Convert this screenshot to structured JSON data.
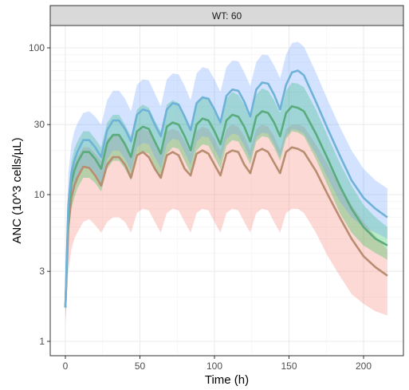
{
  "chart_data": {
    "type": "line",
    "facet_label": "WT: 60",
    "xlabel": "Time (h)",
    "ylabel": "ANC (10^3 cells/µL)",
    "y_scale": "log",
    "xlim": [
      0,
      216
    ],
    "ylim": [
      1,
      120
    ],
    "x_ticks": [
      0,
      50,
      100,
      150,
      200
    ],
    "x_tick_labels": [
      "0",
      "50",
      "100",
      "150",
      "200"
    ],
    "y_ticks": [
      1,
      3,
      10,
      30,
      100
    ],
    "y_tick_labels": [
      "1",
      "3",
      "10",
      "30",
      "100"
    ],
    "grid": true,
    "legend": "none",
    "x": [
      0,
      2,
      4,
      6,
      8,
      12,
      16,
      20,
      24,
      28,
      32,
      36,
      40,
      44,
      48,
      52,
      56,
      60,
      64,
      68,
      72,
      76,
      80,
      84,
      88,
      92,
      96,
      100,
      104,
      108,
      112,
      116,
      120,
      124,
      128,
      132,
      136,
      140,
      144,
      148,
      152,
      156,
      160,
      168,
      176,
      184,
      192,
      200,
      208,
      216
    ],
    "series": [
      {
        "name": "red",
        "color": "#f8766d",
        "line_color": "#b88d70",
        "median": [
          1.7,
          6.0,
          9.5,
          11.5,
          13.0,
          15.5,
          15.2,
          13.5,
          11.5,
          16.0,
          18.0,
          18.0,
          16.0,
          13.0,
          18.5,
          19.5,
          18.0,
          15.0,
          13.0,
          18.5,
          19.5,
          18.5,
          15.0,
          13.5,
          19.0,
          20.0,
          19.0,
          16.0,
          13.5,
          19.0,
          20.0,
          19.5,
          16.0,
          14.0,
          19.5,
          20.5,
          19.5,
          16.5,
          14.0,
          19.5,
          21.0,
          20.5,
          19.5,
          14.5,
          10.0,
          7.0,
          5.0,
          3.8,
          3.2,
          2.8
        ],
        "lower": [
          1.3,
          3.0,
          4.2,
          5.0,
          5.5,
          6.5,
          6.8,
          6.2,
          5.5,
          6.5,
          7.0,
          7.0,
          6.5,
          5.5,
          7.5,
          8.0,
          7.8,
          6.5,
          5.5,
          7.5,
          8.0,
          7.8,
          6.5,
          5.5,
          7.5,
          8.0,
          7.8,
          6.5,
          5.5,
          7.5,
          8.0,
          7.8,
          6.5,
          5.5,
          7.5,
          8.0,
          7.8,
          6.5,
          5.5,
          7.5,
          8.0,
          8.0,
          7.5,
          5.5,
          3.8,
          2.8,
          2.1,
          1.8,
          1.6,
          1.5
        ],
        "upper": [
          2.0,
          10.0,
          14.0,
          16.0,
          18.0,
          21.0,
          21.0,
          19.0,
          17.0,
          24.0,
          26.0,
          26.0,
          23.0,
          19.0,
          27.0,
          28.0,
          27.0,
          23.0,
          19.0,
          27.0,
          28.0,
          27.0,
          23.0,
          19.0,
          27.0,
          29.0,
          28.0,
          24.0,
          20.0,
          28.0,
          30.0,
          29.0,
          25.0,
          20.0,
          28.0,
          30.0,
          29.0,
          25.0,
          20.0,
          28.0,
          30.0,
          30.0,
          29.0,
          22.0,
          16.0,
          11.5,
          8.5,
          6.5,
          5.2,
          4.2
        ]
      },
      {
        "name": "green",
        "color": "#00ba38",
        "line_color": "#5aac7c",
        "median": [
          1.7,
          7.5,
          12.0,
          14.5,
          16.5,
          19.5,
          19.5,
          17.5,
          15.0,
          22.5,
          25.5,
          25.5,
          22.0,
          18.0,
          27.0,
          29.0,
          28.0,
          23.0,
          19.0,
          29.0,
          31.0,
          30.0,
          25.0,
          20.0,
          30.0,
          33.0,
          32.0,
          27.0,
          22.0,
          32.0,
          35.0,
          34.0,
          29.0,
          23.0,
          34.0,
          37.0,
          36.0,
          31.0,
          25.0,
          36.0,
          40.0,
          39.0,
          37.0,
          26.0,
          17.5,
          11.5,
          8.0,
          6.0,
          5.0,
          4.5
        ],
        "lower": [
          1.4,
          5.0,
          8.0,
          9.5,
          11.0,
          13.0,
          13.0,
          12.0,
          10.5,
          15.0,
          17.0,
          17.0,
          15.0,
          12.5,
          18.0,
          19.5,
          19.0,
          15.5,
          13.0,
          19.0,
          21.0,
          20.5,
          17.0,
          14.0,
          20.0,
          22.0,
          21.5,
          18.0,
          15.0,
          21.5,
          23.5,
          23.0,
          19.5,
          16.0,
          23.0,
          25.0,
          24.5,
          21.0,
          17.0,
          24.0,
          27.0,
          26.5,
          25.0,
          17.5,
          11.5,
          7.5,
          5.5,
          4.5,
          4.0,
          3.6
        ],
        "upper": [
          2.1,
          10.0,
          16.5,
          20.5,
          23.0,
          27.0,
          27.0,
          24.0,
          21.0,
          31.0,
          35.0,
          35.0,
          30.0,
          25.0,
          38.0,
          41.0,
          39.0,
          32.0,
          27.0,
          41.0,
          44.0,
          42.0,
          35.0,
          28.0,
          43.0,
          47.0,
          45.0,
          38.0,
          31.0,
          45.0,
          50.0,
          48.0,
          41.0,
          33.0,
          48.0,
          53.0,
          51.0,
          44.0,
          36.0,
          51.0,
          58.0,
          57.0,
          54.0,
          38.0,
          25.0,
          16.5,
          11.5,
          8.5,
          7.0,
          6.0
        ]
      },
      {
        "name": "blue",
        "color": "#619cff",
        "line_color": "#6fb2d8",
        "median": [
          1.7,
          8.5,
          14.0,
          17.0,
          19.5,
          23.5,
          23.5,
          21.0,
          18.0,
          27.5,
          32.0,
          32.0,
          28.0,
          23.0,
          35.0,
          38.0,
          37.0,
          30.0,
          25.0,
          38.0,
          42.0,
          41.0,
          34.0,
          27.5,
          42.0,
          46.0,
          45.0,
          38.0,
          31.0,
          47.0,
          52.0,
          51.0,
          43.0,
          34.0,
          52.0,
          58.0,
          57.0,
          48.0,
          38.0,
          56.0,
          68.0,
          70.0,
          65.0,
          43.0,
          28.0,
          18.5,
          12.5,
          9.5,
          8.0,
          7.0
        ],
        "lower": [
          1.4,
          5.5,
          9.0,
          11.0,
          12.5,
          15.5,
          15.5,
          14.0,
          12.0,
          17.5,
          20.0,
          20.0,
          17.5,
          14.5,
          21.0,
          22.5,
          22.0,
          18.0,
          15.0,
          22.0,
          24.0,
          23.5,
          19.5,
          16.0,
          23.0,
          25.0,
          24.5,
          20.5,
          17.0,
          24.0,
          26.0,
          25.5,
          21.5,
          17.5,
          24.5,
          26.5,
          26.0,
          22.0,
          18.0,
          25.0,
          28.0,
          27.5,
          26.0,
          19.0,
          13.0,
          9.0,
          7.0,
          6.0,
          5.5,
          5.0
        ],
        "upper": [
          3.2,
          14.0,
          22.0,
          27.0,
          30.5,
          36.0,
          37.0,
          34.0,
          30.0,
          44.0,
          51.0,
          51.0,
          45.0,
          37.0,
          56.0,
          61.0,
          60.0,
          49.0,
          40.0,
          61.0,
          67.0,
          66.0,
          55.0,
          44.0,
          67.0,
          74.0,
          72.0,
          61.0,
          50.0,
          74.0,
          82.0,
          81.0,
          68.0,
          55.0,
          80.0,
          90.0,
          89.0,
          76.0,
          62.0,
          90.0,
          108.0,
          110.0,
          102.0,
          68.0,
          44.0,
          29.0,
          20.0,
          15.0,
          12.5,
          11.0
        ]
      }
    ]
  }
}
